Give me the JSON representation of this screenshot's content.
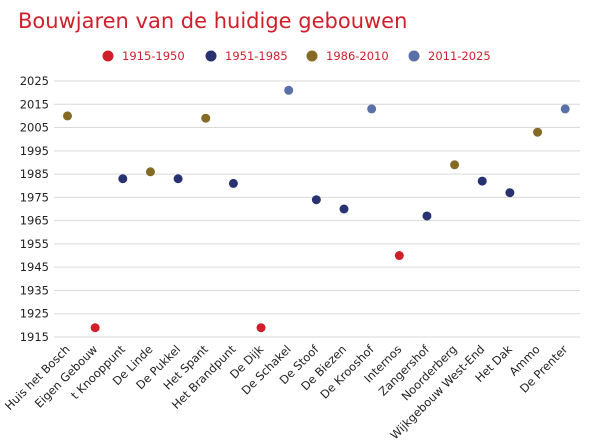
{
  "chart_data": {
    "type": "scatter",
    "title": "Bouwjaren van de huidige gebouwen",
    "xlabel": "",
    "ylabel": "",
    "ylim": [
      1915,
      2025
    ],
    "yticks": [
      "1915",
      "1925",
      "1935",
      "1945",
      "1955",
      "1965",
      "1975",
      "1985",
      "1995",
      "2005",
      "2015",
      "2025"
    ],
    "grid": true,
    "legend_position": "top",
    "categories": [
      "Huis het Bosch",
      "Eigen Gebouw",
      "t Knooppunt",
      "De Linde",
      "De Pukkel",
      "Het Spant",
      "Het Brandpunt",
      "De Dijk",
      "De Schakel",
      "De Stoof",
      "De Biezen",
      "De Krooshof",
      "Internos",
      "Zangershof",
      "Noorderberg",
      "Wijkgebouw West-End",
      "Het Dak",
      "Ammo",
      "De Prenter"
    ],
    "values": [
      2010,
      1919,
      1983,
      1986,
      1983,
      2009,
      1981,
      1919,
      2021,
      1974,
      1970,
      2013,
      1950,
      1967,
      1989,
      1982,
      1977,
      2003,
      2013
    ],
    "groups": [
      {
        "name": "1915-1950",
        "color": "#d01f2a"
      },
      {
        "name": "1951-1985",
        "color": "#283270"
      },
      {
        "name": "1986-2010",
        "color": "#856a25"
      },
      {
        "name": "2011-2025",
        "color": "#5b70a8"
      }
    ]
  }
}
